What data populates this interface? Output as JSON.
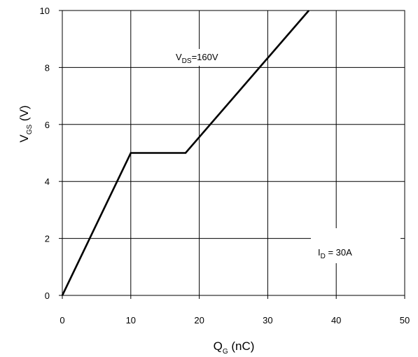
{
  "chart_data": {
    "type": "line",
    "xlabel": {
      "main": "Q",
      "sub": "G",
      "rest": " (nC)"
    },
    "ylabel": {
      "main": "V",
      "sub": "GS",
      "rest": " (V)"
    },
    "xlim": [
      0,
      50
    ],
    "ylim": [
      0,
      10
    ],
    "x_ticks": [
      "0",
      "10",
      "20",
      "30",
      "40",
      "50"
    ],
    "y_ticks": [
      "0",
      "2",
      "4",
      "6",
      "8",
      "10"
    ],
    "grid": true,
    "series": [
      {
        "x": [
          0,
          10,
          18,
          36
        ],
        "y": [
          0,
          5,
          5,
          10
        ]
      }
    ],
    "annotations": {
      "vds": {
        "main": "V",
        "sub": "DS",
        "rest": "=160V"
      },
      "id": {
        "main": "I",
        "sub": "D",
        "rest": " = 30A"
      }
    }
  }
}
